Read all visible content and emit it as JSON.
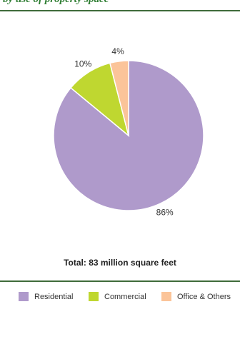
{
  "header": {
    "text": "by use of property space"
  },
  "chart_data": {
    "type": "pie",
    "slices": [
      {
        "name": "Residential",
        "value": 86,
        "label": "86%",
        "color": "#af9acb"
      },
      {
        "name": "Commercial",
        "value": 10,
        "label": "10%",
        "color": "#bfd730"
      },
      {
        "name": "Office & Others",
        "value": 4,
        "label": "4%",
        "color": "#fbc499"
      }
    ],
    "total_text": "Total: 83 million square feet",
    "legend": [
      {
        "label": "Residential",
        "color": "#af9acb"
      },
      {
        "label": "Commercial",
        "color": "#bfd730"
      },
      {
        "label": "Office & Others",
        "color": "#fbc499"
      }
    ]
  }
}
